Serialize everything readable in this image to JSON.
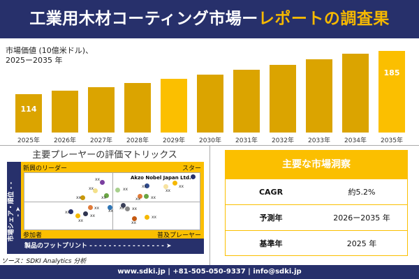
{
  "header": {
    "title_main": "工業用木材コーティング市場ー",
    "title_accent": "レポートの調査果"
  },
  "chart_data": {
    "type": "bar",
    "title_line1": "市場価値 (10億米ドル)、",
    "title_line2": "2025ー2035 年",
    "categories": [
      "2025年",
      "2026年",
      "2027年",
      "2028年",
      "2029年",
      "2030年",
      "2031年",
      "2032年",
      "2033年",
      "2034年",
      "2035年"
    ],
    "values": [
      114,
      120,
      126,
      132,
      139,
      146,
      154,
      162,
      171,
      180,
      185
    ],
    "data_labels": {
      "first": "114",
      "last": "185"
    },
    "colors": {
      "dark": "#dba400",
      "bright": "#fbbf00"
    }
  },
  "matrix": {
    "title": "主要プレーヤーの評価マトリックス",
    "quadrants": {
      "top_left": "新興のリーダー",
      "top_right": "スター",
      "bottom_left": "参加者",
      "bottom_right": "普及プレーヤー"
    },
    "highlight": "Akzo Nobel Japan Ltd.",
    "x_axis": "製品のフットプリント",
    "y_axis": "市場シェア・順位",
    "point_label": "xx"
  },
  "source": "ソース：SDKI Analytics 分析",
  "insights": {
    "title": "主要な市場洞察",
    "rows": [
      {
        "k": "CAGR",
        "v": "約5.2%"
      },
      {
        "k": "予測年",
        "v": "2026ー2035 年"
      },
      {
        "k": "基準年",
        "v": "2025 年"
      }
    ]
  },
  "footer": "www.sdki.jp | +81-505-050-9337 | info@sdki.jp"
}
